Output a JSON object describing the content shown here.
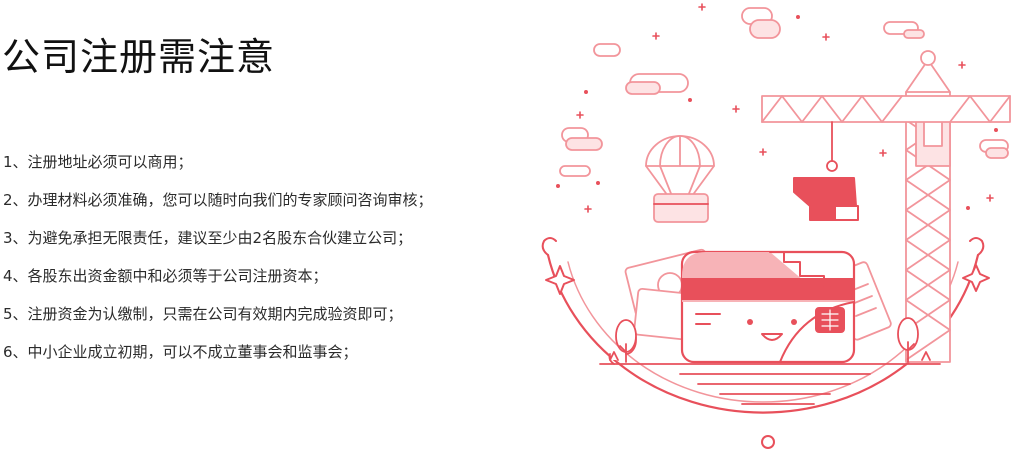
{
  "title": "公司注册需注意",
  "notes": [
    "1、注册地址必须可以商用；",
    "2、办理材料必须准确，您可以随时向我们的专家顾问咨询审核；",
    "3、为避免承担无限责任，建议至少由2名股东合伙建立公司；",
    "4、各股东出资金额中和必须等于公司注册资本；",
    "5、注册资金为认缴制，只需在公司有效期内完成验资即可；",
    "6、中小企业成立初期，可以不成立董事会和监事会；"
  ],
  "colors": {
    "accent": "#e8505b",
    "accent_light": "#f7b3b7",
    "accent_pale": "#fde3e4",
    "text": "#2b2b2b"
  },
  "illustration": {
    "subject": "card-crane-illustration",
    "icons": [
      "crane-icon",
      "card-mascot-icon",
      "parachute-icon",
      "cloud-icon",
      "sparkle-icon",
      "tree-icon",
      "banknote-icon"
    ]
  }
}
